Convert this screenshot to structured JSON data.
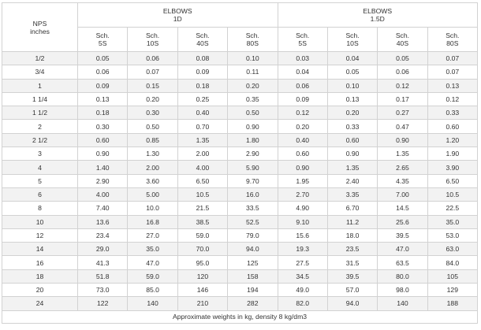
{
  "header": {
    "nps_line1": "NPS",
    "nps_line2": "inches",
    "group1_line1": "ELBOWS",
    "group1_line2": "1D",
    "group2_line1": "ELBOWS",
    "group2_line2": "1.5D",
    "sch_word": "Sch.",
    "schedules": [
      "5S",
      "10S",
      "40S",
      "80S",
      "5S",
      "10S",
      "40S",
      "80S"
    ]
  },
  "rows": [
    [
      "1/2",
      "0.05",
      "0.06",
      "0.08",
      "0.10",
      "0.03",
      "0.04",
      "0.05",
      "0.07"
    ],
    [
      "3/4",
      "0.06",
      "0.07",
      "0.09",
      "0.11",
      "0.04",
      "0.05",
      "0.06",
      "0.07"
    ],
    [
      "1",
      "0.09",
      "0.15",
      "0.18",
      "0.20",
      "0.06",
      "0.10",
      "0.12",
      "0.13"
    ],
    [
      "1 1/4",
      "0.13",
      "0.20",
      "0.25",
      "0.35",
      "0.09",
      "0.13",
      "0.17",
      "0.12"
    ],
    [
      "1 1/2",
      "0.18",
      "0.30",
      "0.40",
      "0.50",
      "0.12",
      "0.20",
      "0.27",
      "0.33"
    ],
    [
      "2",
      "0.30",
      "0.50",
      "0.70",
      "0.90",
      "0.20",
      "0.33",
      "0.47",
      "0.60"
    ],
    [
      "2 1/2",
      "0.60",
      "0.85",
      "1.35",
      "1.80",
      "0.40",
      "0.60",
      "0.90",
      "1.20"
    ],
    [
      "3",
      "0.90",
      "1.30",
      "2.00",
      "2.90",
      "0.60",
      "0.90",
      "1.35",
      "1.90"
    ],
    [
      "4",
      "1.40",
      "2.00",
      "4.00",
      "5.90",
      "0.90",
      "1.35",
      "2.65",
      "3.90"
    ],
    [
      "5",
      "2.90",
      "3.60",
      "6.50",
      "9.70",
      "1.95",
      "2.40",
      "4.35",
      "6.50"
    ],
    [
      "6",
      "4.00",
      "5.00",
      "10.5",
      "16.0",
      "2.70",
      "3.35",
      "7.00",
      "10.5"
    ],
    [
      "8",
      "7.40",
      "10.0",
      "21.5",
      "33.5",
      "4.90",
      "6.70",
      "14.5",
      "22.5"
    ],
    [
      "10",
      "13.6",
      "16.8",
      "38.5",
      "52.5",
      "9.10",
      "11.2",
      "25.6",
      "35.0"
    ],
    [
      "12",
      "23.4",
      "27.0",
      "59.0",
      "79.0",
      "15.6",
      "18.0",
      "39.5",
      "53.0"
    ],
    [
      "14",
      "29.0",
      "35.0",
      "70.0",
      "94.0",
      "19.3",
      "23.5",
      "47.0",
      "63.0"
    ],
    [
      "16",
      "41.3",
      "47.0",
      "95.0",
      "125",
      "27.5",
      "31.5",
      "63.5",
      "84.0"
    ],
    [
      "18",
      "51.8",
      "59.0",
      "120",
      "158",
      "34.5",
      "39.5",
      "80.0",
      "105"
    ],
    [
      "20",
      "73.0",
      "85.0",
      "146",
      "194",
      "49.0",
      "57.0",
      "98.0",
      "129"
    ],
    [
      "24",
      "122",
      "140",
      "210",
      "282",
      "82.0",
      "94.0",
      "140",
      "188"
    ]
  ],
  "footer": "Approximate weights in kg, density 8 kg/dm3"
}
